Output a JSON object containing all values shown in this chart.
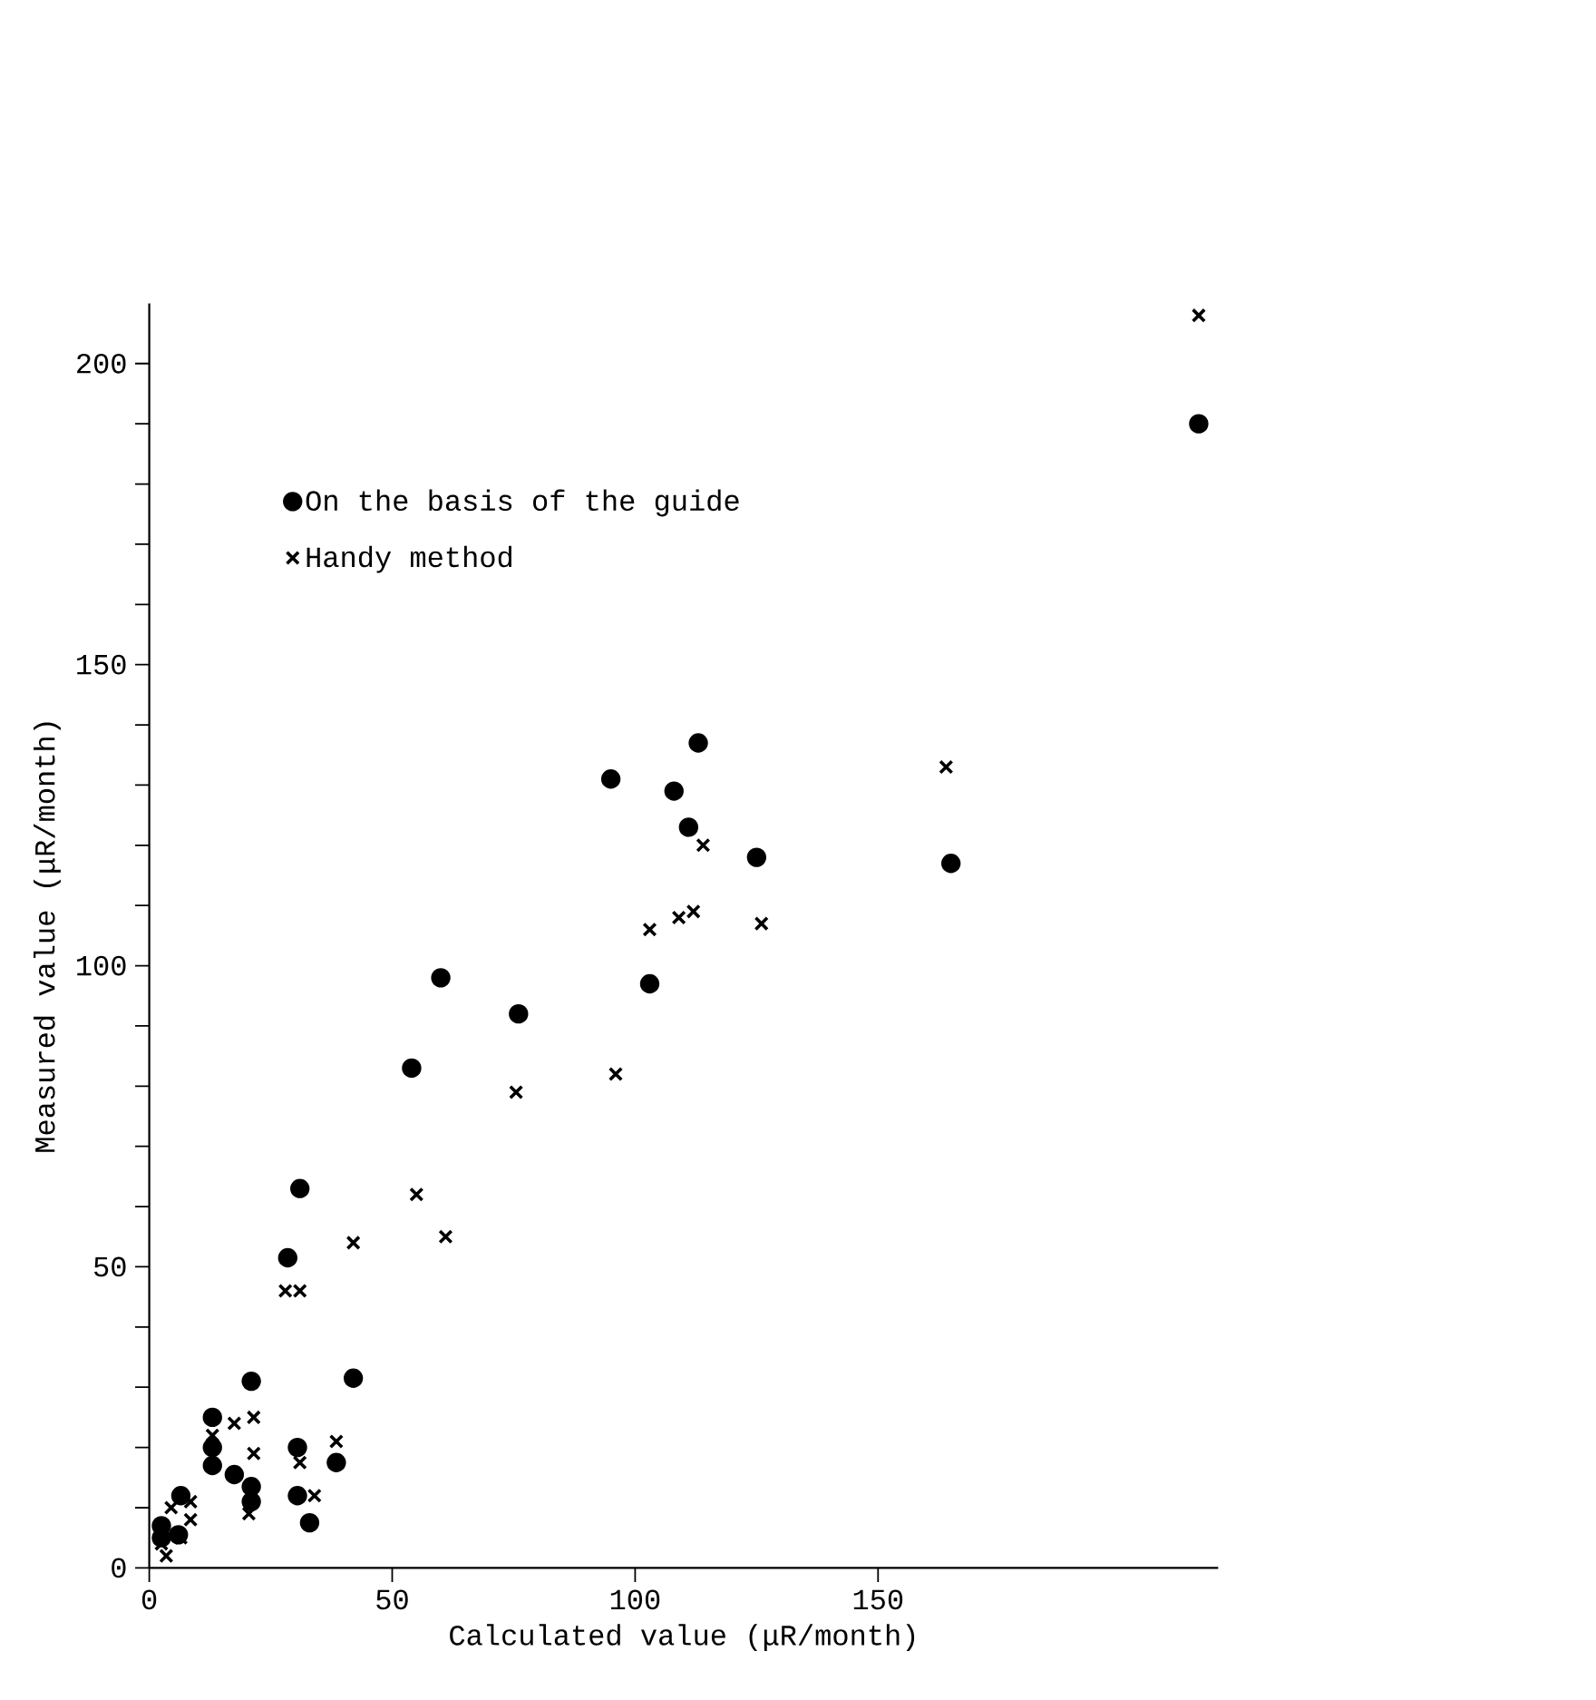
{
  "chart_data": {
    "type": "scatter",
    "xlabel": "Calculated value (μR/month)",
    "ylabel": "Measured value (μR/month)",
    "xlim": [
      0,
      220
    ],
    "ylim": [
      0,
      210
    ],
    "xticks": [
      0,
      50,
      100,
      150
    ],
    "yticks": [
      0,
      {
        "value": 10,
        "label": null
      },
      {
        "value": 20,
        "label": null
      },
      {
        "value": 30,
        "label": null
      },
      {
        "value": 40,
        "label": null
      },
      50,
      {
        "value": 60,
        "label": null
      },
      {
        "value": 70,
        "label": null
      },
      {
        "value": 80,
        "label": null
      },
      {
        "value": 90,
        "label": null
      },
      100,
      {
        "value": 110,
        "label": null
      },
      {
        "value": 120,
        "label": null
      },
      {
        "value": 130,
        "label": null
      },
      {
        "value": 140,
        "label": null
      },
      150,
      {
        "value": 160,
        "label": null
      },
      {
        "value": 170,
        "label": null
      },
      {
        "value": 180,
        "label": null
      },
      {
        "value": 190,
        "label": null
      },
      200
    ],
    "grid": false,
    "legend": "top left",
    "series": [
      {
        "name": "On the basis of the guide",
        "color": "#000000",
        "marker": "circle",
        "x": [
          216,
          113,
          95,
          108,
          111,
          125,
          165,
          60,
          76,
          103,
          54,
          31,
          28.5,
          21,
          42,
          13,
          13,
          13,
          17.5,
          21,
          21,
          30.5,
          30.5,
          33,
          38.5,
          6.5,
          2.5,
          2.5,
          6
        ],
        "values": [
          190,
          137,
          131,
          129,
          123,
          118,
          117,
          98,
          92,
          97,
          83,
          63,
          51.5,
          31,
          31.5,
          25,
          20,
          17,
          15.5,
          13.5,
          11,
          20,
          12,
          7.5,
          17.5,
          12,
          7,
          5,
          5.5
        ]
      },
      {
        "name": "Handy method",
        "color": "#000000",
        "marker": "cross",
        "x": [
          216,
          164,
          114,
          103,
          109,
          112,
          126,
          75.5,
          96,
          55,
          42,
          61,
          28,
          31,
          17.5,
          21.5,
          13,
          21.5,
          31,
          38.5,
          34,
          20.5,
          8.5,
          4.5,
          8.5,
          6.5,
          3.5,
          2.5
        ],
        "values": [
          208,
          133,
          120,
          106,
          108,
          109,
          107,
          79,
          82,
          62,
          54,
          55,
          46,
          46,
          24,
          25,
          22,
          19,
          17.5,
          21,
          12,
          9,
          11,
          10,
          8,
          5,
          2,
          4
        ]
      }
    ]
  }
}
